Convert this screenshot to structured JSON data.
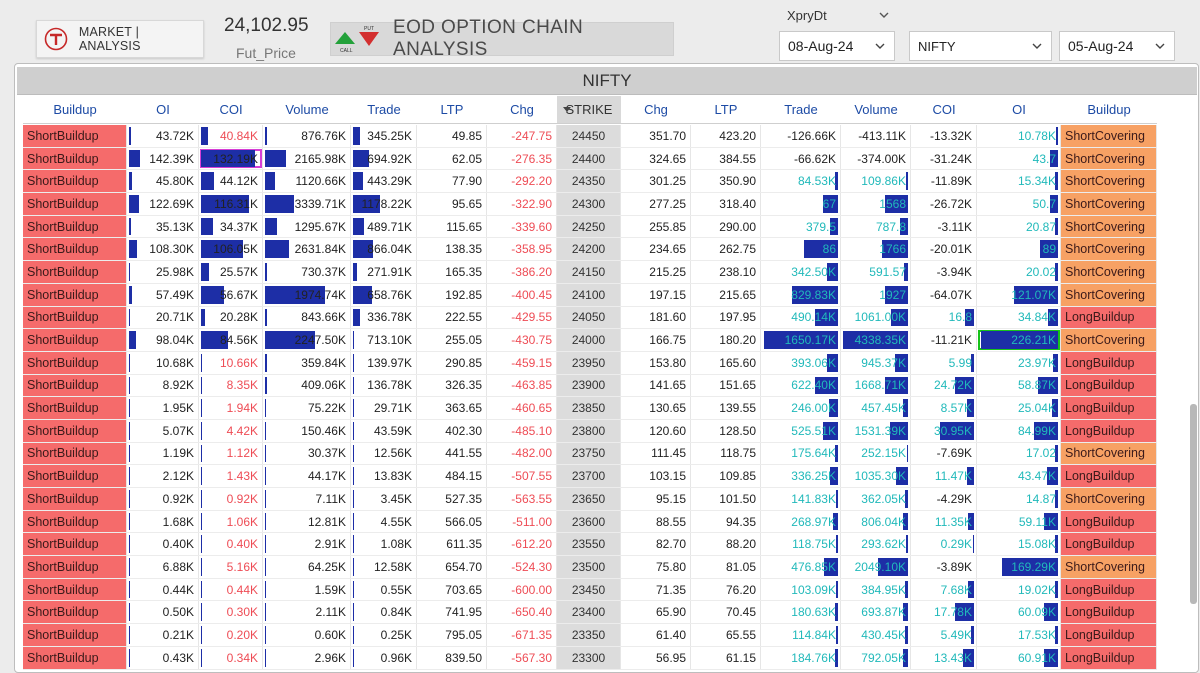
{
  "header": {
    "market_label": "MARKET | ANALYSIS",
    "fut_price_value": "24,102.95",
    "fut_price_label": "Fut_Price",
    "title": "EOD OPTION CHAIN ANALYSIS",
    "icon_put_label": "PUT",
    "icon_call_label": "CALL",
    "expiry_label": "XpryDt",
    "expiry_value": "08-Aug-24",
    "index_value": "NIFTY",
    "date_value": "05-Aug-24"
  },
  "panel": {
    "title": "NIFTY",
    "columns": [
      "Buildup",
      "OI",
      "COI",
      "Volume",
      "Trade",
      "LTP",
      "Chg",
      "STRIKE",
      "Chg",
      "LTP",
      "Trade",
      "Volume",
      "COI",
      "OI",
      "Buildup"
    ]
  },
  "colors": {
    "short_buildup": "#f56b6b",
    "short_covering": "#f7a164",
    "long_buildup": "#f56b6b",
    "bar": "#1d2ea6",
    "positive": "#21b9ba",
    "negative": "#ee4c55"
  },
  "rows": [
    {
      "cbu": "ShortBuildup",
      "coi_oi": "43.72K",
      "c_coi": "40.84K",
      "c_vol": "876.76K",
      "c_trade": "345.25K",
      "c_ltp": "49.85",
      "c_chg": "-247.75",
      "strike": "24450",
      "p_chg": "351.70",
      "p_ltp": "423.20",
      "p_trade": "-126.66K",
      "p_vol": "-413.11K",
      "p_coi": "-13.32K",
      "p_oi": "10.78K",
      "pbu": "ShortCovering",
      "b": {
        "oi": 0.03,
        "coi": 0.12,
        "vol": 0.02,
        "trade": 0.12,
        "pt": 0,
        "pv": 0,
        "pc": 0,
        "po": 0.02
      }
    },
    {
      "cbu": "ShortBuildup",
      "coi_oi": "142.39K",
      "c_coi": "132.19K",
      "c_vol": "2165.98K",
      "c_trade": "694.92K",
      "c_ltp": "62.05",
      "c_chg": "-276.35",
      "strike": "24400",
      "p_chg": "324.65",
      "p_ltp": "384.55",
      "p_trade": "-66.62K",
      "p_vol": "-374.00K",
      "p_coi": "-31.24K",
      "p_oi": "43.7",
      "pbu": "ShortCovering",
      "b": {
        "oi": 0.16,
        "coi": 0.9,
        "vol": 0.25,
        "trade": 0.25,
        "pt": 0,
        "pv": 0,
        "pc": 0,
        "po": 0.1
      }
    },
    {
      "cbu": "ShortBuildup",
      "coi_oi": "45.80K",
      "c_coi": "44.12K",
      "c_vol": "1120.66K",
      "c_trade": "443.29K",
      "c_ltp": "77.90",
      "c_chg": "-292.20",
      "strike": "24350",
      "p_chg": "301.25",
      "p_ltp": "350.90",
      "p_trade": "84.53K",
      "p_vol": "109.86K",
      "p_coi": "-11.89K",
      "p_oi": "15.34K",
      "pbu": "ShortCovering",
      "b": {
        "oi": 0.04,
        "coi": 0.22,
        "vol": 0.12,
        "trade": 0.16,
        "pt": 0.04,
        "pv": 0.03,
        "pc": 0,
        "po": 0.04
      }
    },
    {
      "cbu": "ShortBuildup",
      "coi_oi": "122.69K",
      "c_coi": "116.31K",
      "c_vol": "3339.71K",
      "c_trade": "1178.22K",
      "c_ltp": "95.65",
      "c_chg": "-322.90",
      "strike": "24300",
      "p_chg": "277.25",
      "p_ltp": "318.40",
      "p_trade": "67",
      "p_vol": "1568",
      "p_coi": "-26.72K",
      "p_oi": "50.7",
      "pbu": "ShortCovering",
      "b": {
        "oi": 0.14,
        "coi": 0.8,
        "vol": 0.35,
        "trade": 0.43,
        "pt": 0.2,
        "pv": 0.35,
        "pc": 0,
        "po": 0.1
      }
    },
    {
      "cbu": "ShortBuildup",
      "coi_oi": "35.13K",
      "c_coi": "34.37K",
      "c_vol": "1295.67K",
      "c_trade": "489.71K",
      "c_ltp": "115.65",
      "c_chg": "-339.60",
      "strike": "24250",
      "p_chg": "255.85",
      "p_ltp": "290.00",
      "p_trade": "379.5",
      "p_vol": "787.8",
      "p_coi": "-3.11K",
      "p_oi": "20.87",
      "pbu": "ShortCovering",
      "b": {
        "oi": 0.03,
        "coi": 0.2,
        "vol": 0.14,
        "trade": 0.18,
        "pt": 0.1,
        "pv": 0.12,
        "pc": 0,
        "po": 0.04
      }
    },
    {
      "cbu": "ShortBuildup",
      "coi_oi": "108.30K",
      "c_coi": "106.05K",
      "c_vol": "2631.84K",
      "c_trade": "866.04K",
      "c_ltp": "138.35",
      "c_chg": "-358.95",
      "strike": "24200",
      "p_chg": "234.65",
      "p_ltp": "262.75",
      "p_trade": "86",
      "p_vol": "1766",
      "p_coi": "-20.01K",
      "p_oi": "89",
      "pbu": "ShortCovering",
      "b": {
        "oi": 0.12,
        "coi": 0.7,
        "vol": 0.28,
        "trade": 0.32,
        "pt": 0.45,
        "pv": 0.4,
        "pc": 0,
        "po": 0.22
      }
    },
    {
      "cbu": "ShortBuildup",
      "coi_oi": "25.98K",
      "c_coi": "25.57K",
      "c_vol": "730.37K",
      "c_trade": "271.91K",
      "c_ltp": "165.35",
      "c_chg": "-386.20",
      "strike": "24150",
      "p_chg": "215.25",
      "p_ltp": "238.10",
      "p_trade": "342.50K",
      "p_vol": "591.57",
      "p_coi": "-3.94K",
      "p_oi": "20.02",
      "pbu": "ShortCovering",
      "b": {
        "oi": 0.02,
        "coi": 0.13,
        "vol": 0.02,
        "trade": 0.06,
        "pt": 0.15,
        "pv": 0.06,
        "pc": 0,
        "po": 0.04
      }
    },
    {
      "cbu": "ShortBuildup",
      "coi_oi": "57.49K",
      "c_coi": "56.67K",
      "c_vol": "1974.74K",
      "c_trade": "658.76K",
      "c_ltp": "192.85",
      "c_chg": "-400.45",
      "strike": "24100",
      "p_chg": "197.15",
      "p_ltp": "215.65",
      "p_trade": "829.83K",
      "p_vol": "1927",
      "p_coi": "-64.07K",
      "p_oi": "121.07K",
      "pbu": "ShortCovering",
      "b": {
        "oi": 0.05,
        "coi": 0.38,
        "vol": 0.72,
        "trade": 0.3,
        "pt": 0.6,
        "pv": 0.35,
        "pc": 0,
        "po": 0.55
      }
    },
    {
      "cbu": "ShortBuildup",
      "coi_oi": "20.71K",
      "c_coi": "20.28K",
      "c_vol": "843.66K",
      "c_trade": "336.78K",
      "c_ltp": "222.55",
      "c_chg": "-429.55",
      "strike": "24050",
      "p_chg": "181.60",
      "p_ltp": "197.95",
      "p_trade": "490.14K",
      "p_vol": "1061.00K",
      "p_coi": "16.8",
      "p_oi": "34.84K",
      "pbu": "LongBuildup",
      "b": {
        "oi": 0.02,
        "coi": 0.06,
        "vol": 0.02,
        "trade": 0.12,
        "pt": 0.3,
        "pv": 0.26,
        "pc": 0.15,
        "po": 0.12
      }
    },
    {
      "cbu": "ShortBuildup",
      "coi_oi": "98.04K",
      "c_coi": "84.56K",
      "c_vol": "2247.50K",
      "c_trade": "713.10K",
      "c_ltp": "255.05",
      "c_chg": "-430.75",
      "strike": "24000",
      "p_chg": "166.75",
      "p_ltp": "180.20",
      "p_trade": "1650.17K",
      "p_vol": "4338.35K",
      "p_coi": "-11.21K",
      "p_oi": "226.21K",
      "pbu": "ShortCovering",
      "b": {
        "oi": 0.1,
        "coi": 0.45,
        "vol": 0.6,
        "trade": 0.02,
        "pt": 0.98,
        "pv": 0.98,
        "pc": 0,
        "po": 0.96
      }
    },
    {
      "cbu": "ShortBuildup",
      "coi_oi": "10.68K",
      "c_coi": "10.66K",
      "c_vol": "359.84K",
      "c_trade": "139.97K",
      "c_ltp": "290.85",
      "c_chg": "-459.15",
      "strike": "23950",
      "p_chg": "153.80",
      "p_ltp": "165.60",
      "p_trade": "393.06K",
      "p_vol": "945.37K",
      "p_coi": "5.99",
      "p_oi": "23.97K",
      "pbu": "LongBuildup",
      "b": {
        "oi": 0.01,
        "coi": 0.02,
        "vol": 0.02,
        "trade": 0.02,
        "pt": 0.15,
        "pv": 0.2,
        "pc": 0.05,
        "po": 0.06
      }
    },
    {
      "cbu": "ShortBuildup",
      "coi_oi": "8.92K",
      "c_coi": "8.35K",
      "c_vol": "409.06K",
      "c_trade": "136.78K",
      "c_ltp": "326.35",
      "c_chg": "-463.85",
      "strike": "23900",
      "p_chg": "141.65",
      "p_ltp": "151.65",
      "p_trade": "622.40K",
      "p_vol": "1668.71K",
      "p_coi": "24.72K",
      "p_oi": "58.87K",
      "pbu": "LongBuildup",
      "b": {
        "oi": 0.01,
        "coi": 0.02,
        "vol": 0.02,
        "trade": 0.02,
        "pt": 0.3,
        "pv": 0.35,
        "pc": 0.3,
        "po": 0.25
      }
    },
    {
      "cbu": "ShortBuildup",
      "coi_oi": "1.95K",
      "c_coi": "1.94K",
      "c_vol": "75.22K",
      "c_trade": "29.71K",
      "c_ltp": "363.65",
      "c_chg": "-460.65",
      "strike": "23850",
      "p_chg": "130.65",
      "p_ltp": "139.55",
      "p_trade": "246.00K",
      "p_vol": "457.45K",
      "p_coi": "8.57K",
      "p_oi": "25.04K",
      "pbu": "LongBuildup",
      "b": {
        "oi": 0.01,
        "coi": 0.01,
        "vol": 0.01,
        "trade": 0.01,
        "pt": 0.12,
        "pv": 0.08,
        "pc": 0.12,
        "po": 0.08
      }
    },
    {
      "cbu": "ShortBuildup",
      "coi_oi": "5.07K",
      "c_coi": "4.42K",
      "c_vol": "150.46K",
      "c_trade": "43.59K",
      "c_ltp": "402.30",
      "c_chg": "-485.10",
      "strike": "23800",
      "p_chg": "120.60",
      "p_ltp": "128.50",
      "p_trade": "525.51K",
      "p_vol": "1531.39K",
      "p_coi": "30.95K",
      "p_oi": "84.99K",
      "pbu": "LongBuildup",
      "b": {
        "oi": 0.01,
        "coi": 0.01,
        "vol": 0.01,
        "trade": 0.01,
        "pt": 0.2,
        "pv": 0.28,
        "pc": 0.55,
        "po": 0.3
      }
    },
    {
      "cbu": "ShortBuildup",
      "coi_oi": "1.19K",
      "c_coi": "1.12K",
      "c_vol": "30.37K",
      "c_trade": "12.56K",
      "c_ltp": "441.55",
      "c_chg": "-482.00",
      "strike": "23750",
      "p_chg": "111.45",
      "p_ltp": "118.75",
      "p_trade": "175.64K",
      "p_vol": "252.15K",
      "p_coi": "-7.69K",
      "p_oi": "17.02",
      "pbu": "ShortCovering",
      "b": {
        "oi": 0.01,
        "coi": 0.01,
        "vol": 0.01,
        "trade": 0.01,
        "pt": 0.04,
        "pv": 0.02,
        "pc": 0,
        "po": 0.04
      }
    },
    {
      "cbu": "ShortBuildup",
      "coi_oi": "2.12K",
      "c_coi": "1.43K",
      "c_vol": "44.17K",
      "c_trade": "13.83K",
      "c_ltp": "484.15",
      "c_chg": "-507.55",
      "strike": "23700",
      "p_chg": "103.15",
      "p_ltp": "109.85",
      "p_trade": "336.25K",
      "p_vol": "1035.30K",
      "p_coi": "11.47K",
      "p_oi": "43.47K",
      "pbu": "LongBuildup",
      "b": {
        "oi": 0.01,
        "coi": 0.01,
        "vol": 0.01,
        "trade": 0.01,
        "pt": 0.1,
        "pv": 0.18,
        "pc": 0.12,
        "po": 0.14
      }
    },
    {
      "cbu": "ShortBuildup",
      "coi_oi": "0.92K",
      "c_coi": "0.92K",
      "c_vol": "7.11K",
      "c_trade": "3.45K",
      "c_ltp": "527.35",
      "c_chg": "-563.55",
      "strike": "23650",
      "p_chg": "95.15",
      "p_ltp": "101.50",
      "p_trade": "141.83K",
      "p_vol": "362.05K",
      "p_coi": "-4.29K",
      "p_oi": "14.87",
      "pbu": "ShortCovering",
      "b": {
        "oi": 0.01,
        "coi": 0.01,
        "vol": 0.01,
        "trade": 0.01,
        "pt": 0.03,
        "pv": 0.04,
        "pc": 0,
        "po": 0.04
      }
    },
    {
      "cbu": "ShortBuildup",
      "coi_oi": "1.68K",
      "c_coi": "1.06K",
      "c_vol": "12.81K",
      "c_trade": "4.55K",
      "c_ltp": "566.05",
      "c_chg": "-511.00",
      "strike": "23600",
      "p_chg": "88.55",
      "p_ltp": "94.35",
      "p_trade": "268.97K",
      "p_vol": "806.04K",
      "p_coi": "11.35K",
      "p_oi": "59.11K",
      "pbu": "LongBuildup",
      "b": {
        "oi": 0.01,
        "coi": 0.01,
        "vol": 0.01,
        "trade": 0.01,
        "pt": 0.06,
        "pv": 0.08,
        "pc": 0.1,
        "po": 0.18
      }
    },
    {
      "cbu": "ShortBuildup",
      "coi_oi": "0.40K",
      "c_coi": "0.40K",
      "c_vol": "2.91K",
      "c_trade": "1.08K",
      "c_ltp": "611.35",
      "c_chg": "-612.20",
      "strike": "23550",
      "p_chg": "82.70",
      "p_ltp": "88.20",
      "p_trade": "118.75K",
      "p_vol": "293.62K",
      "p_coi": "0.29K",
      "p_oi": "15.08K",
      "pbu": "LongBuildup",
      "b": {
        "oi": 0.01,
        "coi": 0.01,
        "vol": 0.01,
        "trade": 0.01,
        "pt": 0.03,
        "pv": 0.03,
        "pc": 0.02,
        "po": 0.04
      }
    },
    {
      "cbu": "ShortBuildup",
      "coi_oi": "6.88K",
      "c_coi": "5.16K",
      "c_vol": "64.25K",
      "c_trade": "12.58K",
      "c_ltp": "654.70",
      "c_chg": "-524.30",
      "strike": "23500",
      "p_chg": "75.80",
      "p_ltp": "81.05",
      "p_trade": "476.85K",
      "p_vol": "2049.10K",
      "p_coi": "-3.89K",
      "p_oi": "169.29K",
      "pbu": "ShortCovering",
      "b": {
        "oi": 0.01,
        "coi": 0.01,
        "vol": 0.01,
        "trade": 0.01,
        "pt": 0.18,
        "pv": 0.46,
        "pc": 0,
        "po": 0.7
      }
    },
    {
      "cbu": "ShortBuildup",
      "coi_oi": "0.44K",
      "c_coi": "0.44K",
      "c_vol": "1.59K",
      "c_trade": "0.55K",
      "c_ltp": "703.65",
      "c_chg": "-600.00",
      "strike": "23450",
      "p_chg": "71.35",
      "p_ltp": "76.20",
      "p_trade": "103.09K",
      "p_vol": "384.95K",
      "p_coi": "7.68K",
      "p_oi": "19.02K",
      "pbu": "LongBuildup",
      "b": {
        "oi": 0.01,
        "coi": 0.01,
        "vol": 0.01,
        "trade": 0.01,
        "pt": 0.03,
        "pv": 0.04,
        "pc": 0.1,
        "po": 0.04
      }
    },
    {
      "cbu": "ShortBuildup",
      "coi_oi": "0.50K",
      "c_coi": "0.30K",
      "c_vol": "2.11K",
      "c_trade": "0.84K",
      "c_ltp": "741.95",
      "c_chg": "-650.40",
      "strike": "23400",
      "p_chg": "65.90",
      "p_ltp": "70.45",
      "p_trade": "180.63K",
      "p_vol": "693.87K",
      "p_coi": "17.78K",
      "p_oi": "60.09K",
      "pbu": "LongBuildup",
      "b": {
        "oi": 0.01,
        "coi": 0.01,
        "vol": 0.01,
        "trade": 0.01,
        "pt": 0.04,
        "pv": 0.08,
        "pc": 0.3,
        "po": 0.18
      }
    },
    {
      "cbu": "ShortBuildup",
      "coi_oi": "0.21K",
      "c_coi": "0.20K",
      "c_vol": "0.60K",
      "c_trade": "0.25K",
      "c_ltp": "795.05",
      "c_chg": "-671.35",
      "strike": "23350",
      "p_chg": "61.40",
      "p_ltp": "65.55",
      "p_trade": "114.84K",
      "p_vol": "430.45K",
      "p_coi": "5.49K",
      "p_oi": "17.53K",
      "pbu": "LongBuildup",
      "b": {
        "oi": 0.01,
        "coi": 0.01,
        "vol": 0.01,
        "trade": 0.01,
        "pt": 0.03,
        "pv": 0.05,
        "pc": 0.05,
        "po": 0.04
      }
    },
    {
      "cbu": "ShortBuildup",
      "coi_oi": "0.43K",
      "c_coi": "0.34K",
      "c_vol": "2.96K",
      "c_trade": "0.96K",
      "c_ltp": "839.50",
      "c_chg": "-567.30",
      "strike": "23300",
      "p_chg": "56.95",
      "p_ltp": "61.15",
      "p_trade": "184.76K",
      "p_vol": "792.05K",
      "p_coi": "13.43K",
      "p_oi": "60.91K",
      "pbu": "LongBuildup",
      "b": {
        "oi": 0.01,
        "coi": 0.01,
        "vol": 0.01,
        "trade": 0.01,
        "pt": 0.04,
        "pv": 0.08,
        "pc": 0.18,
        "po": 0.18
      }
    }
  ]
}
